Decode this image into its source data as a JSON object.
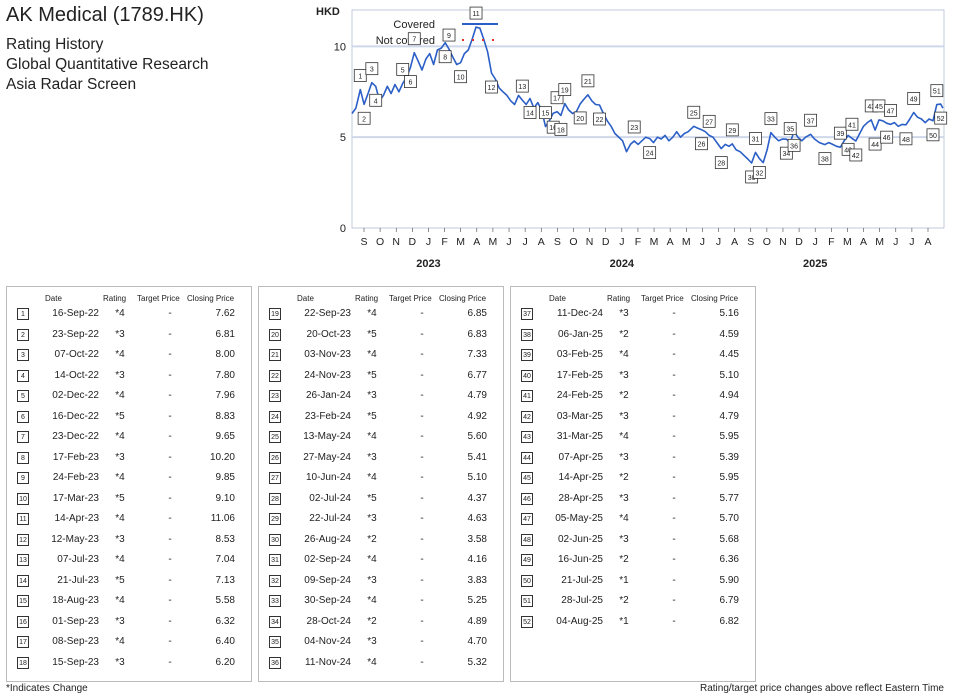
{
  "header": {
    "title": "AK Medical (1789.HK)",
    "subtitles": [
      "Rating History",
      "Global Quantitative Research",
      "Asia Radar Screen"
    ]
  },
  "chart_data": {
    "type": "line",
    "ylabel": "HKD",
    "ylim": [
      0,
      12
    ],
    "yticks": [
      0,
      5,
      10
    ],
    "legend": [
      {
        "label": "Covered",
        "color": "#2b5fc7",
        "style": "solid"
      },
      {
        "label": "Not covered",
        "color": "#e03030",
        "style": "dotted"
      }
    ],
    "legend_position": "top-left",
    "x_months": [
      "S",
      "O",
      "N",
      "D",
      "J",
      "F",
      "M",
      "A",
      "M",
      "J",
      "J",
      "A",
      "S",
      "O",
      "N",
      "D",
      "J",
      "F",
      "M",
      "A",
      "M",
      "J",
      "J",
      "A",
      "S",
      "O",
      "N",
      "D",
      "J",
      "F",
      "M",
      "A",
      "M",
      "J",
      "J",
      "A"
    ],
    "x_years": [
      {
        "label": "2023",
        "month_index": 4
      },
      {
        "label": "2024",
        "month_index": 16
      },
      {
        "label": "2025",
        "month_index": 28
      }
    ],
    "x_range": [
      "2022-09-01",
      "2025-08-10"
    ],
    "price_series": [
      [
        "2022-09-01",
        6.3
      ],
      [
        "2022-09-08",
        6.6
      ],
      [
        "2022-09-16",
        7.62
      ],
      [
        "2022-09-23",
        6.81
      ],
      [
        "2022-09-30",
        7.4
      ],
      [
        "2022-10-07",
        8.0
      ],
      [
        "2022-10-14",
        7.8
      ],
      [
        "2022-10-21",
        7.0
      ],
      [
        "2022-10-28",
        7.3
      ],
      [
        "2022-11-04",
        7.8
      ],
      [
        "2022-11-11",
        7.4
      ],
      [
        "2022-11-18",
        7.9
      ],
      [
        "2022-11-25",
        7.5
      ],
      [
        "2022-12-02",
        7.96
      ],
      [
        "2022-12-09",
        8.3
      ],
      [
        "2022-12-16",
        8.83
      ],
      [
        "2022-12-23",
        9.65
      ],
      [
        "2022-12-30",
        9.2
      ],
      [
        "2023-01-06",
        8.7
      ],
      [
        "2023-01-13",
        9.3
      ],
      [
        "2023-01-20",
        9.6
      ],
      [
        "2023-01-27",
        9.0
      ],
      [
        "2023-02-03",
        9.8
      ],
      [
        "2023-02-10",
        9.9
      ],
      [
        "2023-02-17",
        10.2
      ],
      [
        "2023-02-24",
        9.85
      ],
      [
        "2023-03-03",
        9.4
      ],
      [
        "2023-03-10",
        9.0
      ],
      [
        "2023-03-17",
        9.1
      ],
      [
        "2023-03-24",
        9.6
      ],
      [
        "2023-03-31",
        9.8
      ],
      [
        "2023-04-07",
        10.4
      ],
      [
        "2023-04-14",
        11.06
      ],
      [
        "2023-04-21",
        11.0
      ],
      [
        "2023-04-28",
        10.4
      ],
      [
        "2023-05-05",
        9.7
      ],
      [
        "2023-05-12",
        8.53
      ],
      [
        "2023-05-19",
        8.2
      ],
      [
        "2023-05-26",
        7.7
      ],
      [
        "2023-06-02",
        7.5
      ],
      [
        "2023-06-09",
        7.3
      ],
      [
        "2023-06-16",
        7.0
      ],
      [
        "2023-06-23",
        6.8
      ],
      [
        "2023-06-30",
        7.3
      ],
      [
        "2023-07-07",
        7.04
      ],
      [
        "2023-07-14",
        6.8
      ],
      [
        "2023-07-21",
        7.13
      ],
      [
        "2023-07-28",
        6.6
      ],
      [
        "2023-08-04",
        6.9
      ],
      [
        "2023-08-11",
        6.5
      ],
      [
        "2023-08-18",
        5.58
      ],
      [
        "2023-08-25",
        5.9
      ],
      [
        "2023-09-01",
        6.32
      ],
      [
        "2023-09-08",
        6.4
      ],
      [
        "2023-09-15",
        6.2
      ],
      [
        "2023-09-22",
        6.85
      ],
      [
        "2023-09-29",
        6.5
      ],
      [
        "2023-10-06",
        6.3
      ],
      [
        "2023-10-13",
        6.4
      ],
      [
        "2023-10-20",
        6.83
      ],
      [
        "2023-10-27",
        7.1
      ],
      [
        "2023-11-03",
        7.33
      ],
      [
        "2023-11-10",
        7.0
      ],
      [
        "2023-11-17",
        6.8
      ],
      [
        "2023-11-24",
        6.77
      ],
      [
        "2023-12-01",
        6.3
      ],
      [
        "2023-12-08",
        5.9
      ],
      [
        "2023-12-15",
        5.6
      ],
      [
        "2023-12-22",
        5.2
      ],
      [
        "2024-01-05",
        4.8
      ],
      [
        "2024-01-12",
        4.2
      ],
      [
        "2024-01-19",
        4.6
      ],
      [
        "2024-01-26",
        4.79
      ],
      [
        "2024-02-02",
        4.6
      ],
      [
        "2024-02-09",
        4.8
      ],
      [
        "2024-02-16",
        5.0
      ],
      [
        "2024-02-23",
        4.92
      ],
      [
        "2024-03-01",
        4.7
      ],
      [
        "2024-03-08",
        5.0
      ],
      [
        "2024-03-15",
        4.9
      ],
      [
        "2024-03-22",
        5.1
      ],
      [
        "2024-03-29",
        4.8
      ],
      [
        "2024-04-05",
        5.0
      ],
      [
        "2024-04-12",
        5.3
      ],
      [
        "2024-04-19",
        5.0
      ],
      [
        "2024-04-26",
        5.2
      ],
      [
        "2024-05-03",
        5.3
      ],
      [
        "2024-05-13",
        5.6
      ],
      [
        "2024-05-20",
        5.5
      ],
      [
        "2024-05-27",
        5.41
      ],
      [
        "2024-06-03",
        5.3
      ],
      [
        "2024-06-10",
        5.1
      ],
      [
        "2024-06-17",
        5.0
      ],
      [
        "2024-06-24",
        4.7
      ],
      [
        "2024-07-02",
        4.37
      ],
      [
        "2024-07-09",
        4.6
      ],
      [
        "2024-07-16",
        4.5
      ],
      [
        "2024-07-22",
        4.63
      ],
      [
        "2024-07-29",
        4.3
      ],
      [
        "2024-08-05",
        4.2
      ],
      [
        "2024-08-12",
        4.0
      ],
      [
        "2024-08-19",
        3.8
      ],
      [
        "2024-08-26",
        3.58
      ],
      [
        "2024-09-02",
        4.16
      ],
      [
        "2024-09-09",
        3.83
      ],
      [
        "2024-09-16",
        3.6
      ],
      [
        "2024-09-23",
        4.3
      ],
      [
        "2024-09-30",
        5.25
      ],
      [
        "2024-10-07",
        5.0
      ],
      [
        "2024-10-14",
        4.8
      ],
      [
        "2024-10-21",
        4.9
      ],
      [
        "2024-10-28",
        4.89
      ],
      [
        "2024-11-04",
        4.7
      ],
      [
        "2024-11-11",
        5.32
      ],
      [
        "2024-11-18",
        5.0
      ],
      [
        "2024-11-25",
        4.8
      ],
      [
        "2024-12-02",
        5.0
      ],
      [
        "2024-12-11",
        5.16
      ],
      [
        "2024-12-18",
        4.9
      ],
      [
        "2024-12-27",
        4.7
      ],
      [
        "2025-01-06",
        4.59
      ],
      [
        "2025-01-13",
        4.7
      ],
      [
        "2025-01-20",
        4.6
      ],
      [
        "2025-01-27",
        4.5
      ],
      [
        "2025-02-03",
        4.45
      ],
      [
        "2025-02-10",
        4.8
      ],
      [
        "2025-02-17",
        5.1
      ],
      [
        "2025-02-24",
        4.94
      ],
      [
        "2025-03-03",
        4.79
      ],
      [
        "2025-03-10",
        5.2
      ],
      [
        "2025-03-17",
        5.6
      ],
      [
        "2025-03-24",
        5.8
      ],
      [
        "2025-03-31",
        5.95
      ],
      [
        "2025-04-07",
        5.39
      ],
      [
        "2025-04-14",
        5.95
      ],
      [
        "2025-04-21",
        5.9
      ],
      [
        "2025-04-28",
        5.77
      ],
      [
        "2025-05-05",
        5.7
      ],
      [
        "2025-05-12",
        5.8
      ],
      [
        "2025-05-19",
        5.6
      ],
      [
        "2025-05-26",
        5.7
      ],
      [
        "2025-06-02",
        5.68
      ],
      [
        "2025-06-09",
        6.0
      ],
      [
        "2025-06-16",
        6.36
      ],
      [
        "2025-06-23",
        6.1
      ],
      [
        "2025-06-30",
        6.0
      ],
      [
        "2025-07-07",
        5.8
      ],
      [
        "2025-07-14",
        6.0
      ],
      [
        "2025-07-21",
        5.9
      ],
      [
        "2025-07-28",
        6.79
      ],
      [
        "2025-08-04",
        6.82
      ],
      [
        "2025-08-08",
        6.6
      ]
    ]
  },
  "ratings": [
    {
      "n": "1",
      "date": "16-Sep-22",
      "rating": "*4",
      "target": "-",
      "close": "7.62"
    },
    {
      "n": "2",
      "date": "23-Sep-22",
      "rating": "*3",
      "target": "-",
      "close": "6.81"
    },
    {
      "n": "3",
      "date": "07-Oct-22",
      "rating": "*4",
      "target": "-",
      "close": "8.00"
    },
    {
      "n": "4",
      "date": "14-Oct-22",
      "rating": "*3",
      "target": "-",
      "close": "7.80"
    },
    {
      "n": "5",
      "date": "02-Dec-22",
      "rating": "*4",
      "target": "-",
      "close": "7.96"
    },
    {
      "n": "6",
      "date": "16-Dec-22",
      "rating": "*5",
      "target": "-",
      "close": "8.83"
    },
    {
      "n": "7",
      "date": "23-Dec-22",
      "rating": "*4",
      "target": "-",
      "close": "9.65"
    },
    {
      "n": "8",
      "date": "17-Feb-23",
      "rating": "*3",
      "target": "-",
      "close": "10.20"
    },
    {
      "n": "9",
      "date": "24-Feb-23",
      "rating": "*4",
      "target": "-",
      "close": "9.85"
    },
    {
      "n": "10",
      "date": "17-Mar-23",
      "rating": "*5",
      "target": "-",
      "close": "9.10"
    },
    {
      "n": "11",
      "date": "14-Apr-23",
      "rating": "*4",
      "target": "-",
      "close": "11.06"
    },
    {
      "n": "12",
      "date": "12-May-23",
      "rating": "*3",
      "target": "-",
      "close": "8.53"
    },
    {
      "n": "13",
      "date": "07-Jul-23",
      "rating": "*4",
      "target": "-",
      "close": "7.04"
    },
    {
      "n": "14",
      "date": "21-Jul-23",
      "rating": "*5",
      "target": "-",
      "close": "7.13"
    },
    {
      "n": "15",
      "date": "18-Aug-23",
      "rating": "*4",
      "target": "-",
      "close": "5.58"
    },
    {
      "n": "16",
      "date": "01-Sep-23",
      "rating": "*3",
      "target": "-",
      "close": "6.32"
    },
    {
      "n": "17",
      "date": "08-Sep-23",
      "rating": "*4",
      "target": "-",
      "close": "6.40"
    },
    {
      "n": "18",
      "date": "15-Sep-23",
      "rating": "*3",
      "target": "-",
      "close": "6.20"
    },
    {
      "n": "19",
      "date": "22-Sep-23",
      "rating": "*4",
      "target": "-",
      "close": "6.85"
    },
    {
      "n": "20",
      "date": "20-Oct-23",
      "rating": "*5",
      "target": "-",
      "close": "6.83"
    },
    {
      "n": "21",
      "date": "03-Nov-23",
      "rating": "*4",
      "target": "-",
      "close": "7.33"
    },
    {
      "n": "22",
      "date": "24-Nov-23",
      "rating": "*5",
      "target": "-",
      "close": "6.77"
    },
    {
      "n": "23",
      "date": "26-Jan-24",
      "rating": "*3",
      "target": "-",
      "close": "4.79"
    },
    {
      "n": "24",
      "date": "23-Feb-24",
      "rating": "*5",
      "target": "-",
      "close": "4.92"
    },
    {
      "n": "25",
      "date": "13-May-24",
      "rating": "*4",
      "target": "-",
      "close": "5.60"
    },
    {
      "n": "26",
      "date": "27-May-24",
      "rating": "*3",
      "target": "-",
      "close": "5.41"
    },
    {
      "n": "27",
      "date": "10-Jun-24",
      "rating": "*4",
      "target": "-",
      "close": "5.10"
    },
    {
      "n": "28",
      "date": "02-Jul-24",
      "rating": "*5",
      "target": "-",
      "close": "4.37"
    },
    {
      "n": "29",
      "date": "22-Jul-24",
      "rating": "*3",
      "target": "-",
      "close": "4.63"
    },
    {
      "n": "30",
      "date": "26-Aug-24",
      "rating": "*2",
      "target": "-",
      "close": "3.58"
    },
    {
      "n": "31",
      "date": "02-Sep-24",
      "rating": "*4",
      "target": "-",
      "close": "4.16"
    },
    {
      "n": "32",
      "date": "09-Sep-24",
      "rating": "*3",
      "target": "-",
      "close": "3.83"
    },
    {
      "n": "33",
      "date": "30-Sep-24",
      "rating": "*4",
      "target": "-",
      "close": "5.25"
    },
    {
      "n": "34",
      "date": "28-Oct-24",
      "rating": "*2",
      "target": "-",
      "close": "4.89"
    },
    {
      "n": "35",
      "date": "04-Nov-24",
      "rating": "*3",
      "target": "-",
      "close": "4.70"
    },
    {
      "n": "36",
      "date": "11-Nov-24",
      "rating": "*4",
      "target": "-",
      "close": "5.32"
    },
    {
      "n": "37",
      "date": "11-Dec-24",
      "rating": "*3",
      "target": "-",
      "close": "5.16"
    },
    {
      "n": "38",
      "date": "06-Jan-25",
      "rating": "*2",
      "target": "-",
      "close": "4.59"
    },
    {
      "n": "39",
      "date": "03-Feb-25",
      "rating": "*4",
      "target": "-",
      "close": "4.45"
    },
    {
      "n": "40",
      "date": "17-Feb-25",
      "rating": "*3",
      "target": "-",
      "close": "5.10"
    },
    {
      "n": "41",
      "date": "24-Feb-25",
      "rating": "*2",
      "target": "-",
      "close": "4.94"
    },
    {
      "n": "42",
      "date": "03-Mar-25",
      "rating": "*3",
      "target": "-",
      "close": "4.79"
    },
    {
      "n": "43",
      "date": "31-Mar-25",
      "rating": "*4",
      "target": "-",
      "close": "5.95"
    },
    {
      "n": "44",
      "date": "07-Apr-25",
      "rating": "*3",
      "target": "-",
      "close": "5.39"
    },
    {
      "n": "45",
      "date": "14-Apr-25",
      "rating": "*2",
      "target": "-",
      "close": "5.95"
    },
    {
      "n": "46",
      "date": "28-Apr-25",
      "rating": "*3",
      "target": "-",
      "close": "5.77"
    },
    {
      "n": "47",
      "date": "05-May-25",
      "rating": "*4",
      "target": "-",
      "close": "5.70"
    },
    {
      "n": "48",
      "date": "02-Jun-25",
      "rating": "*3",
      "target": "-",
      "close": "5.68"
    },
    {
      "n": "49",
      "date": "16-Jun-25",
      "rating": "*2",
      "target": "-",
      "close": "6.36"
    },
    {
      "n": "50",
      "date": "21-Jul-25",
      "rating": "*1",
      "target": "-",
      "close": "5.90"
    },
    {
      "n": "51",
      "date": "28-Jul-25",
      "rating": "*2",
      "target": "-",
      "close": "6.79"
    },
    {
      "n": "52",
      "date": "04-Aug-25",
      "rating": "*1",
      "target": "-",
      "close": "6.82"
    }
  ],
  "table_headers": {
    "date": "Date",
    "rating": "Rating",
    "target": "Target Price",
    "close": "Closing Price"
  },
  "footer": {
    "left": "*Indicates Change",
    "right": "Rating/target price changes above reflect Eastern Time"
  },
  "colors": {
    "line": "#2b5fc7",
    "grid": "#cfd8ea",
    "not_covered": "#e03030"
  }
}
